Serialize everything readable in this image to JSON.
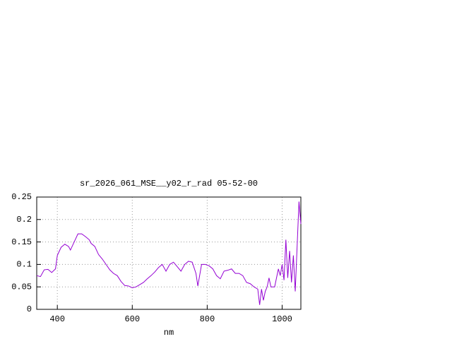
{
  "chart_data": {
    "type": "line",
    "title": "sr_2026_061_MSE__y02_r_rad 05-52-00",
    "x_label": "nm",
    "x": [
      345,
      355,
      365,
      375,
      385,
      395,
      400,
      410,
      420,
      430,
      435,
      445,
      455,
      465,
      475,
      485,
      490,
      500,
      510,
      520,
      530,
      540,
      550,
      560,
      570,
      580,
      590,
      600,
      610,
      620,
      630,
      640,
      650,
      660,
      670,
      680,
      690,
      700,
      710,
      720,
      730,
      740,
      750,
      760,
      770,
      775,
      785,
      795,
      805,
      815,
      825,
      835,
      845,
      855,
      865,
      875,
      885,
      895,
      905,
      915,
      925,
      935,
      940,
      945,
      950,
      955,
      960,
      965,
      970,
      980,
      985,
      990,
      995,
      1000,
      1005,
      1010,
      1015,
      1020,
      1025,
      1030,
      1035,
      1040,
      1045,
      1050
    ],
    "series": [
      {
        "color": "#9400d3",
        "values": [
          0.075,
          0.073,
          0.088,
          0.089,
          0.082,
          0.09,
          0.12,
          0.138,
          0.145,
          0.14,
          0.132,
          0.15,
          0.168,
          0.168,
          0.162,
          0.155,
          0.147,
          0.14,
          0.122,
          0.112,
          0.1,
          0.088,
          0.08,
          0.075,
          0.062,
          0.053,
          0.052,
          0.048,
          0.05,
          0.055,
          0.06,
          0.068,
          0.075,
          0.083,
          0.093,
          0.1,
          0.085,
          0.1,
          0.105,
          0.095,
          0.085,
          0.1,
          0.107,
          0.105,
          0.08,
          0.052,
          0.1,
          0.1,
          0.097,
          0.09,
          0.075,
          0.068,
          0.085,
          0.087,
          0.09,
          0.08,
          0.08,
          0.075,
          0.06,
          0.057,
          0.05,
          0.045,
          0.01,
          0.045,
          0.02,
          0.04,
          0.05,
          0.07,
          0.05,
          0.05,
          0.07,
          0.09,
          0.075,
          0.1,
          0.065,
          0.155,
          0.07,
          0.13,
          0.06,
          0.12,
          0.04,
          0.14,
          0.24,
          0.19
        ]
      }
    ],
    "xlim": [
      345,
      1050
    ],
    "xticks": [
      400,
      600,
      800,
      1000
    ],
    "ylim": [
      0,
      0.25
    ],
    "yticks": [
      0,
      0.05,
      0.1,
      0.15,
      0.2,
      0.25
    ],
    "grid": true
  }
}
